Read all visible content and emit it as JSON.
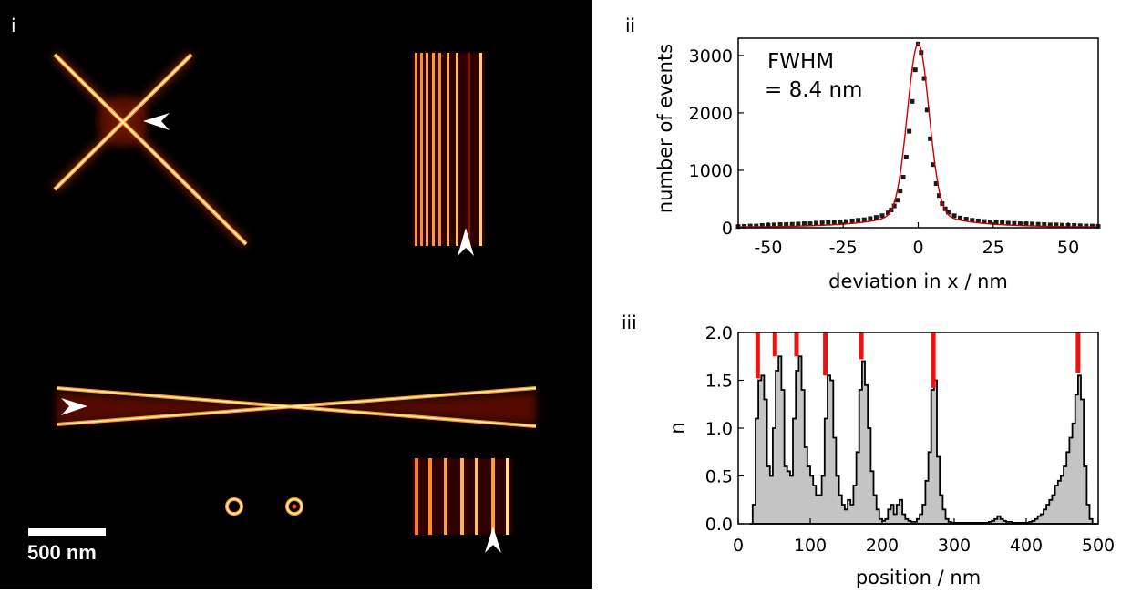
{
  "panels": {
    "i": {
      "label": "i",
      "scalebar_label": "500 nm"
    },
    "ii": {
      "label": "ii",
      "annotation_title": "FWHM",
      "annotation_value": "= 8.4 nm"
    },
    "iii": {
      "label": "iii"
    }
  },
  "colors": {
    "hot_low": "#5a0000",
    "hot_mid": "#ff6a00",
    "hot_high": "#fff6c8",
    "fit_line": "#cc0000",
    "peak_marker": "#ee1111",
    "histogram_fill": "#c4c4c4"
  },
  "chart_data": [
    {
      "type": "scatter",
      "xlabel": "deviation in x / nm",
      "ylabel": "number of events",
      "xlim": [
        -60,
        60
      ],
      "ylim": [
        0,
        3300
      ],
      "xticks": [
        -50,
        -25,
        0,
        25,
        50
      ],
      "xtick_labels": [
        "-50",
        "-25",
        "0",
        "25",
        "50"
      ],
      "yticks": [
        0,
        1000,
        2000,
        3000
      ],
      "ytick_labels": [
        "0",
        "1000",
        "2000",
        "3000"
      ],
      "fit": "Gaussian with wide background, FWHM 8.4 nm",
      "x": [
        -60,
        -58,
        -56,
        -54,
        -52,
        -50,
        -48,
        -46,
        -44,
        -42,
        -40,
        -38,
        -36,
        -34,
        -32,
        -30,
        -28,
        -26,
        -24,
        -22,
        -20,
        -18,
        -16,
        -14,
        -12,
        -10,
        -9,
        -8,
        -7,
        -6,
        -5,
        -4,
        -3,
        -2,
        -1,
        0,
        1,
        2,
        3,
        4,
        5,
        6,
        7,
        8,
        9,
        10,
        12,
        14,
        16,
        18,
        20,
        22,
        24,
        26,
        28,
        30,
        32,
        34,
        36,
        38,
        40,
        42,
        44,
        46,
        48,
        50,
        52,
        54,
        56,
        58,
        60
      ],
      "y": [
        20,
        25,
        30,
        30,
        40,
        45,
        50,
        55,
        55,
        60,
        65,
        70,
        70,
        80,
        85,
        90,
        95,
        100,
        110,
        120,
        130,
        140,
        160,
        180,
        210,
        260,
        310,
        380,
        480,
        640,
        880,
        1230,
        1680,
        2200,
        2750,
        3200,
        3050,
        2600,
        2050,
        1550,
        1100,
        770,
        560,
        420,
        330,
        270,
        210,
        170,
        150,
        130,
        120,
        110,
        100,
        95,
        90,
        80,
        75,
        70,
        70,
        65,
        60,
        55,
        50,
        50,
        45,
        40,
        40,
        35,
        30,
        30,
        25
      ]
    },
    {
      "type": "area",
      "xlabel": "position / nm",
      "ylabel": "n",
      "xlim": [
        0,
        500
      ],
      "ylim": [
        0,
        2.0
      ],
      "xticks": [
        0,
        100,
        200,
        300,
        400,
        500
      ],
      "xtick_labels": [
        "0",
        "100",
        "200",
        "300",
        "400",
        "500"
      ],
      "yticks": [
        0,
        0.5,
        1.0,
        1.5,
        2.0
      ],
      "ytick_labels": [
        "0.0",
        "0.5",
        "1.0",
        "1.5",
        "2.0"
      ],
      "bin_width": 4,
      "x": [
        16,
        20,
        24,
        28,
        32,
        36,
        40,
        44,
        48,
        52,
        56,
        60,
        64,
        68,
        72,
        76,
        80,
        84,
        88,
        92,
        96,
        100,
        104,
        108,
        112,
        116,
        120,
        124,
        128,
        132,
        136,
        140,
        144,
        148,
        152,
        156,
        160,
        164,
        168,
        172,
        176,
        180,
        184,
        188,
        192,
        196,
        200,
        204,
        208,
        212,
        216,
        220,
        224,
        228,
        232,
        236,
        240,
        244,
        248,
        252,
        256,
        260,
        264,
        268,
        272,
        276,
        280,
        284,
        288,
        292,
        296,
        300,
        304,
        308,
        312,
        316,
        320,
        324,
        328,
        332,
        336,
        340,
        344,
        348,
        352,
        356,
        360,
        364,
        368,
        372,
        376,
        380,
        384,
        388,
        392,
        396,
        400,
        404,
        408,
        412,
        416,
        420,
        424,
        428,
        432,
        436,
        440,
        444,
        448,
        452,
        456,
        460,
        464,
        468,
        472,
        476,
        480,
        484,
        488,
        492,
        496
      ],
      "values": [
        0,
        0.2,
        1.1,
        1.5,
        1.55,
        1.3,
        0.6,
        0.5,
        1.0,
        1.6,
        1.75,
        1.4,
        0.6,
        0.55,
        0.5,
        1.1,
        1.6,
        1.75,
        1.4,
        0.8,
        0.6,
        0.5,
        0.4,
        0.3,
        0.3,
        0.5,
        1.1,
        1.55,
        1.5,
        0.9,
        0.5,
        0.3,
        0.2,
        0.15,
        0.25,
        0.2,
        0.4,
        0.75,
        1.4,
        1.7,
        1.45,
        1.0,
        0.55,
        0.3,
        0.15,
        0.05,
        0.03,
        0.05,
        0.15,
        0.2,
        0.1,
        0.2,
        0.25,
        0.1,
        0.05,
        0.03,
        0.02,
        0.02,
        0.05,
        0.1,
        0.2,
        0.45,
        0.75,
        1.4,
        1.5,
        0.7,
        0.3,
        0.15,
        0.05,
        0.02,
        0.01,
        0.01,
        0.01,
        0.01,
        0.01,
        0.01,
        0.01,
        0.01,
        0.01,
        0.01,
        0.01,
        0.01,
        0.01,
        0.02,
        0.03,
        0.05,
        0.08,
        0.05,
        0.03,
        0.02,
        0.02,
        0.01,
        0.01,
        0.01,
        0.01,
        0.01,
        0.01,
        0.02,
        0.03,
        0.05,
        0.08,
        0.1,
        0.15,
        0.2,
        0.25,
        0.3,
        0.4,
        0.45,
        0.5,
        0.6,
        0.75,
        0.9,
        1.05,
        1.35,
        1.55,
        1.3,
        0.6,
        0.2,
        0.05,
        0,
        0
      ],
      "peak_markers": {
        "x": [
          27,
          51,
          81,
          121,
          171,
          271,
          472
        ],
        "tops": [
          1.52,
          1.75,
          1.75,
          1.55,
          1.72,
          1.42,
          1.58
        ]
      }
    }
  ]
}
